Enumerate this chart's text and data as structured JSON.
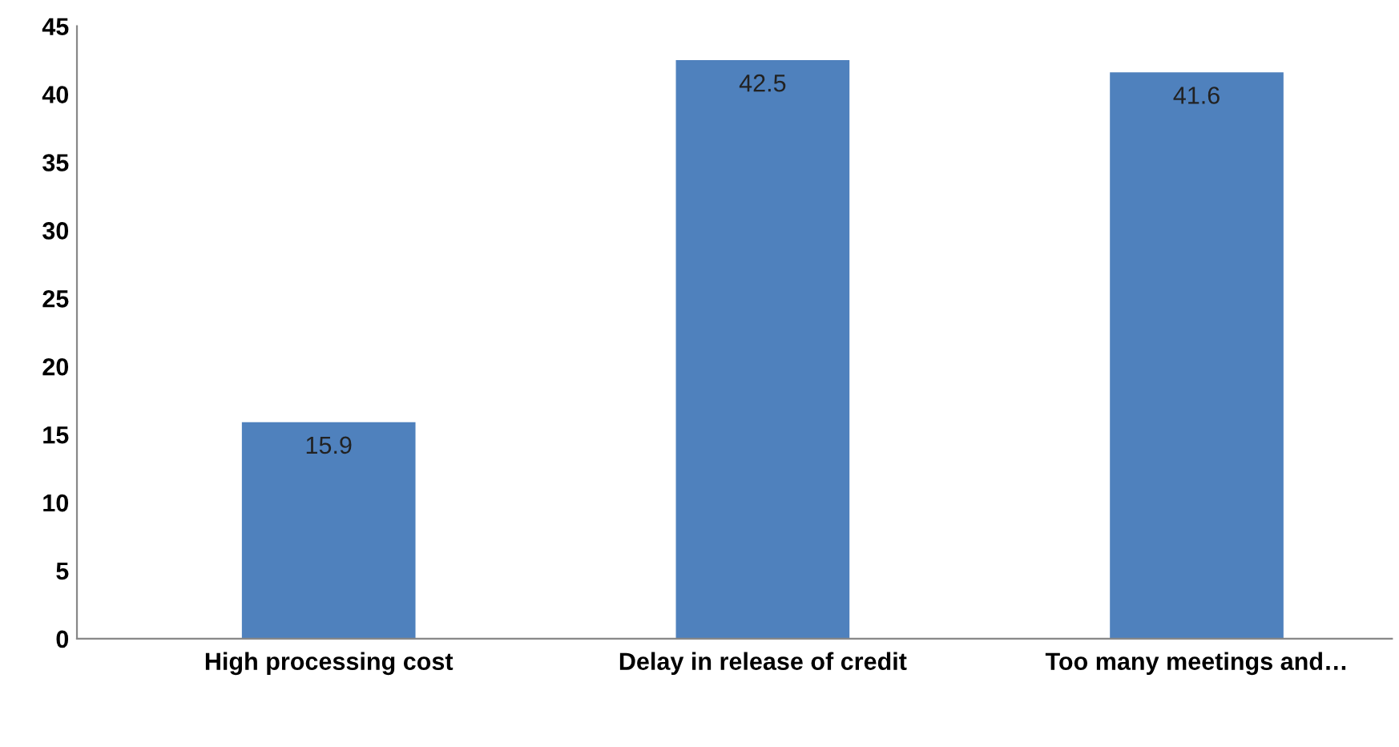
{
  "chart_data": {
    "type": "bar",
    "categories": [
      "High processing cost",
      "Delay in release of credit",
      "Too many meetings and…"
    ],
    "values": [
      15.9,
      42.5,
      41.6
    ],
    "color": "#4f81bd",
    "ylim": [
      0,
      45
    ],
    "yticks": [
      0,
      5,
      10,
      15,
      20,
      25,
      30,
      35,
      40,
      45
    ],
    "grid": false,
    "data_labels": true,
    "legend": false
  }
}
